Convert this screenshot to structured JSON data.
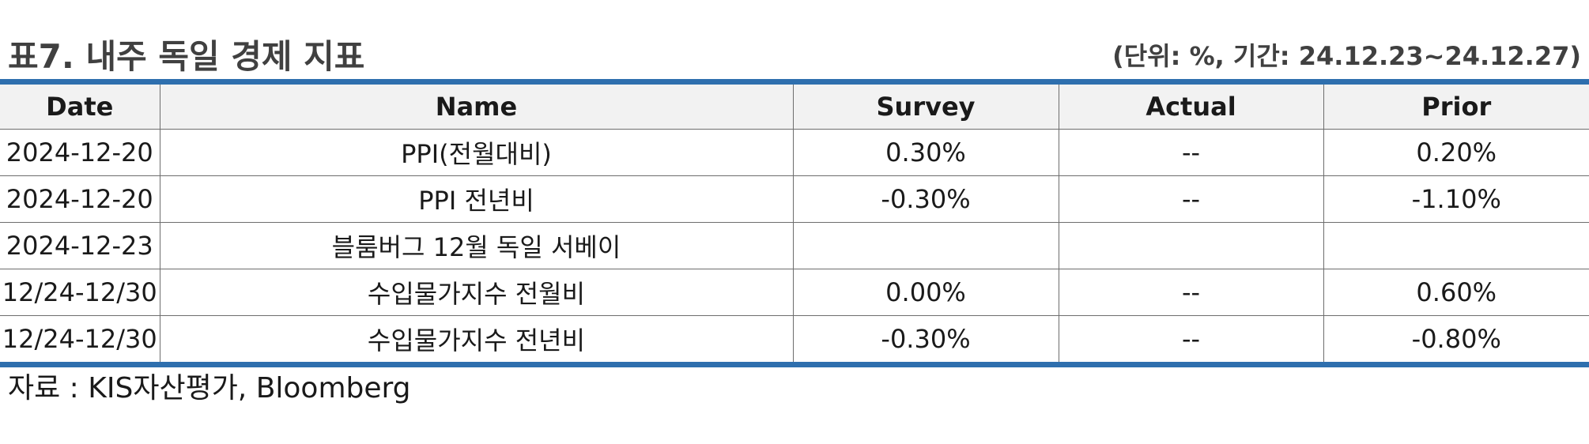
{
  "title": "표7. 내주 독일 경제 지표",
  "unit_note": "(단위: %, 기간: 24.12.23~24.12.27)",
  "table": {
    "headers": [
      "Date",
      "Name",
      "Survey",
      "Actual",
      "Prior"
    ],
    "rows": [
      [
        "2024-12-20",
        "PPI(전월대비)",
        "0.30%",
        "--",
        "0.20%"
      ],
      [
        "2024-12-20",
        "PPI 전년비",
        "-0.30%",
        "--",
        "-1.10%"
      ],
      [
        "2024-12-23",
        "블룸버그 12월 독일 서베이",
        "",
        "",
        ""
      ],
      [
        "12/24-12/30",
        "수입물가지수 전월비",
        "0.00%",
        "--",
        "0.60%"
      ],
      [
        "12/24-12/30",
        "수입물가지수 전년비",
        "-0.30%",
        "--",
        "-0.80%"
      ]
    ]
  },
  "source": "자료 : KIS자산평가, Bloomberg",
  "colors": {
    "accent_rule": "#2e6fae",
    "header_bg": "#f2f2f2",
    "title_text": "#404040"
  }
}
